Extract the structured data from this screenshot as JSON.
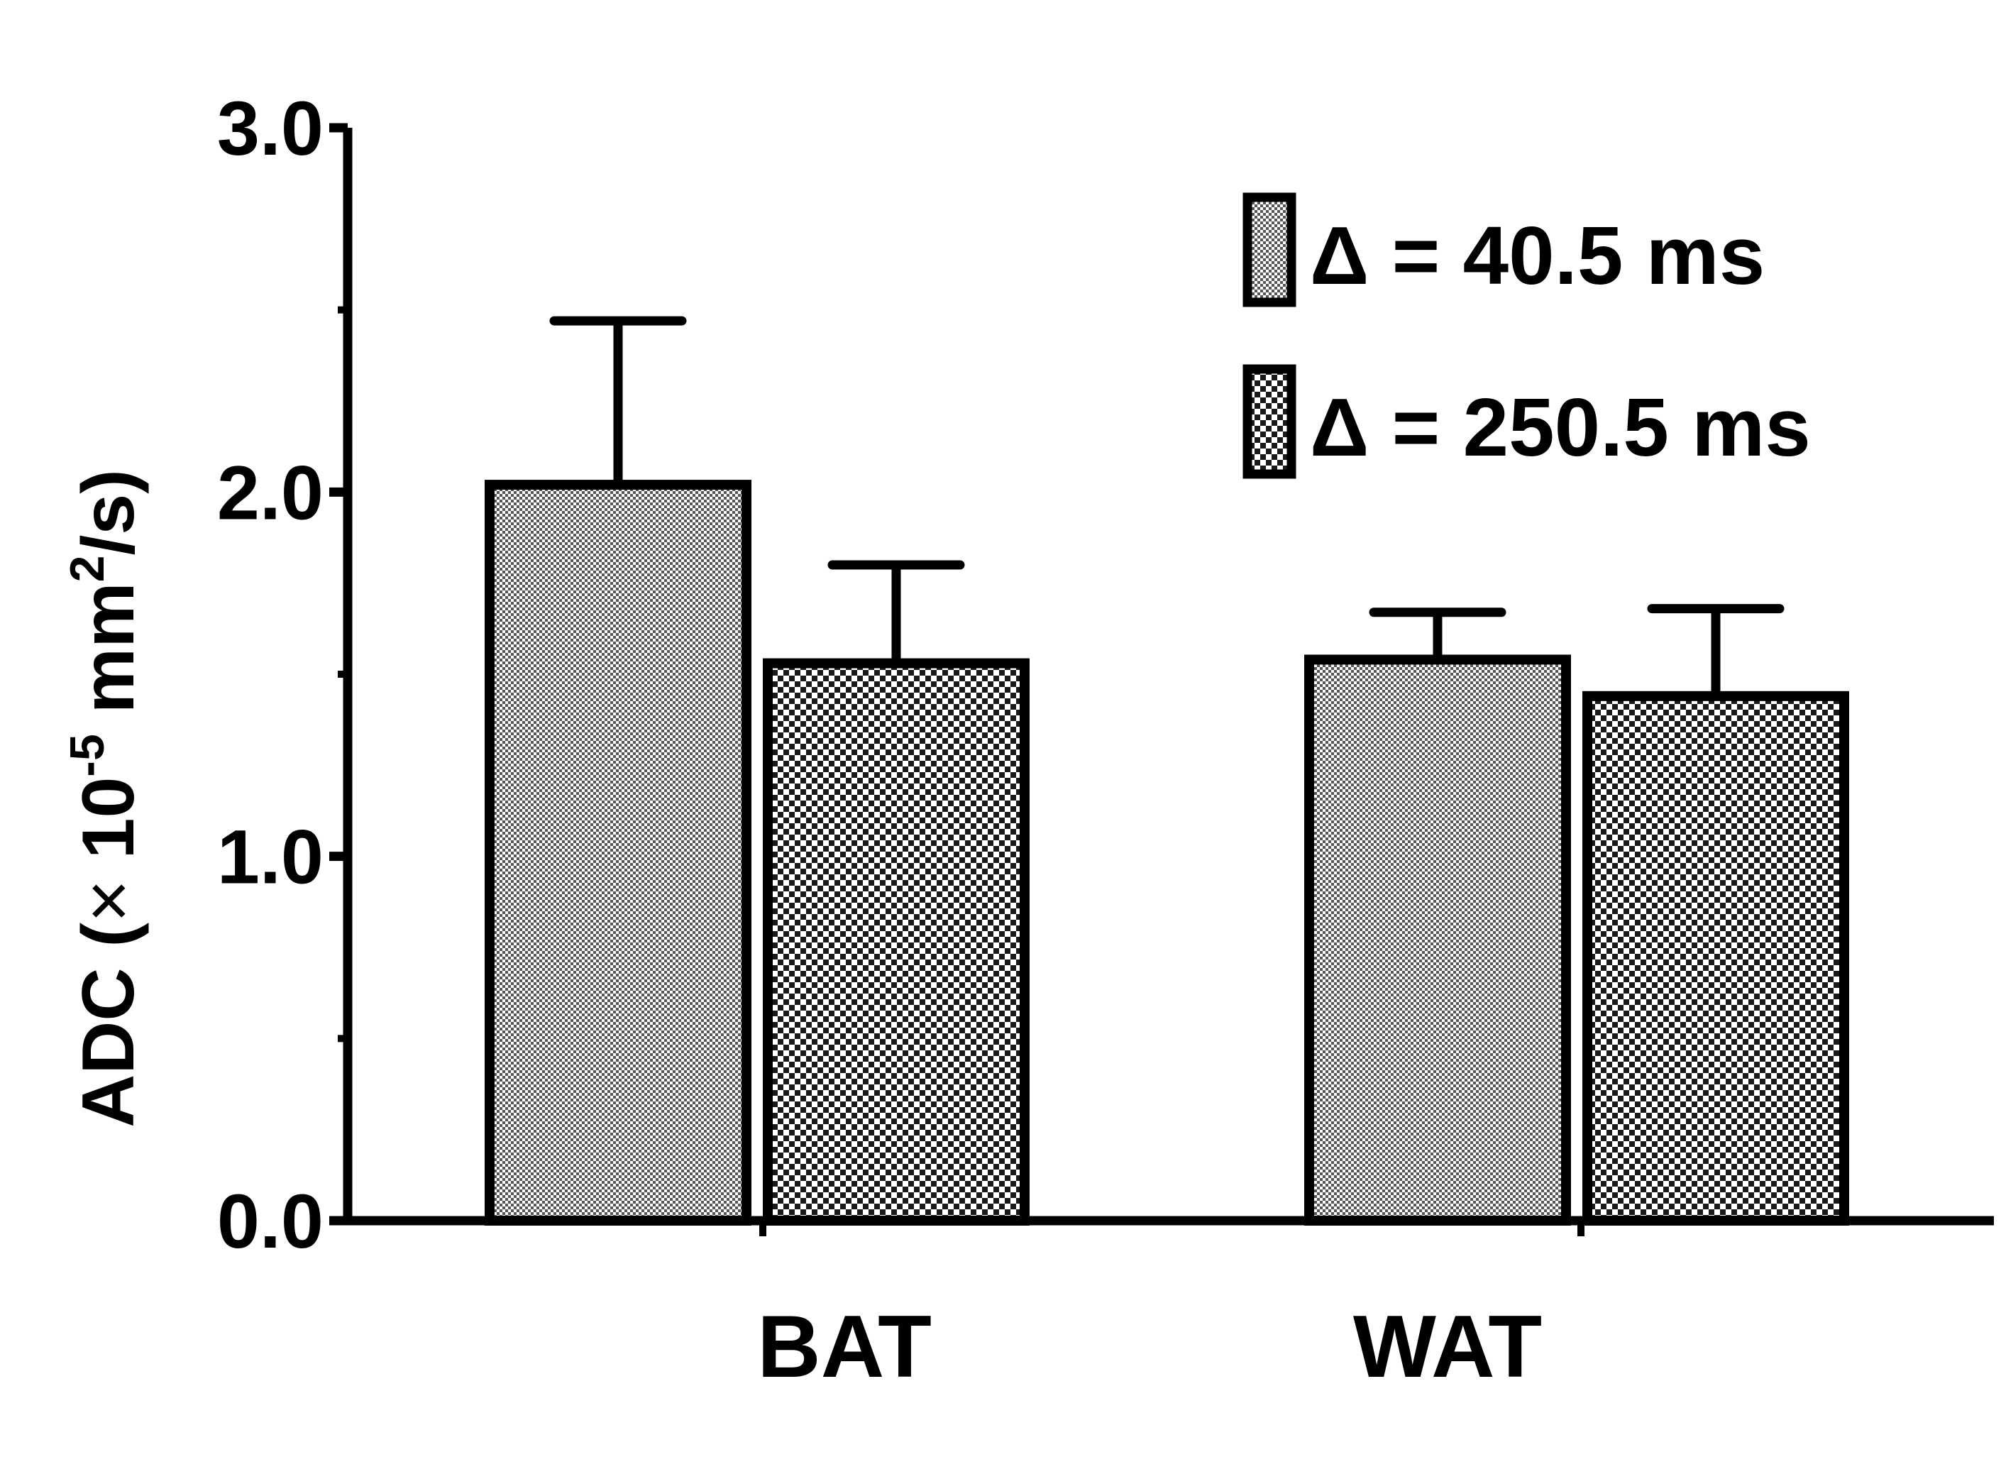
{
  "chart_data": {
    "type": "bar",
    "title": "",
    "xlabel": "",
    "ylabel": {
      "prefix": "ADC (",
      "times": "×",
      "base": " 10",
      "exp1": "-5",
      "unit": " mm",
      "exp2": "2",
      "suffix": "/s)"
    },
    "ylim": [
      0,
      3
    ],
    "yticks": [
      "0.0",
      "1.0",
      "2.0",
      "3.0"
    ],
    "ytick_values": [
      0,
      1,
      2,
      3
    ],
    "minor_ytick_values": [
      0.5,
      1.5,
      2.5
    ],
    "categories": [
      "BAT",
      "WAT"
    ],
    "series": [
      {
        "name": "Δ = 40.5 ms",
        "values": [
          2.02,
          1.54
        ],
        "error": [
          0.45,
          0.13
        ],
        "pattern": "fine-checker"
      },
      {
        "name": "Δ = 250.5 ms",
        "values": [
          1.53,
          1.44
        ],
        "error": [
          0.27,
          0.24
        ],
        "pattern": "coarse-checker"
      }
    ],
    "legend_position": "top-right",
    "grid": false
  }
}
